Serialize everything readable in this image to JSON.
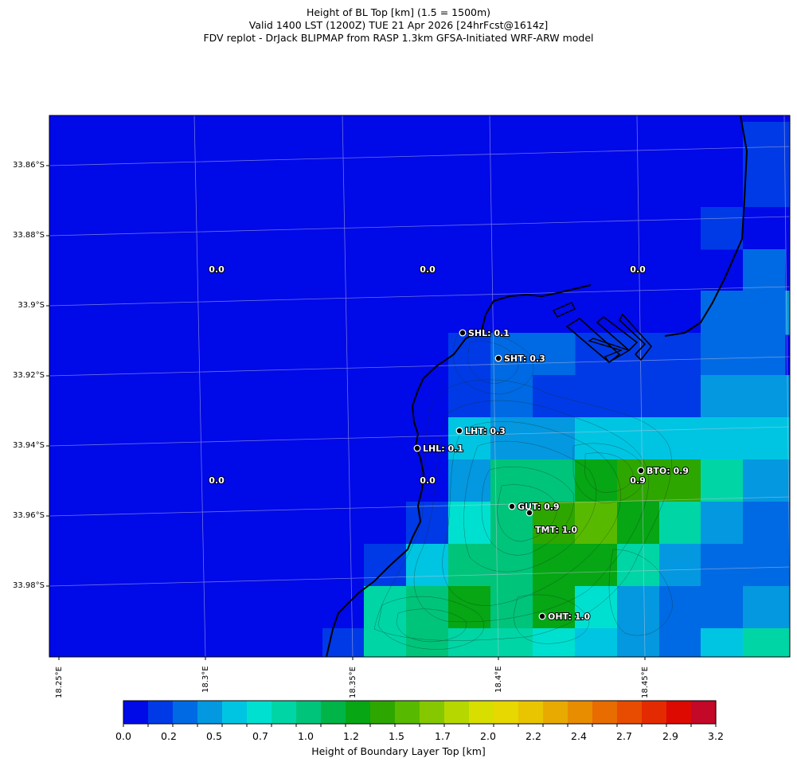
{
  "header": {
    "line1": "Height of BL Top [km] (1.5 = 1500m)",
    "line2": "Valid 1400 LST (1200Z) TUE 21 Apr 2026 [24hrFcst@1614z]",
    "line3": "FDV replot - DrJack BLIPMAP from RASP 1.3km GFSA-Initiated WRF-ARW model"
  },
  "axes": {
    "y_labels": [
      "33.86°S",
      "33.88°S",
      "33.9°S",
      "33.92°S",
      "33.94°S",
      "33.96°S",
      "33.98°S"
    ],
    "x_labels": [
      "18.25°E",
      "18.3°E",
      "18.35°E",
      "18.4°E",
      "18.45°E"
    ]
  },
  "colorbar": {
    "title": "Height of Boundary Layer Top [km]",
    "tick_labels": [
      "0.0",
      "0.2",
      "0.5",
      "0.7",
      "1.0",
      "1.2",
      "1.5",
      "1.7",
      "2.0",
      "2.2",
      "2.4",
      "2.7",
      "2.9",
      "3.2"
    ],
    "colors": [
      "#0009e8",
      "#003ae6",
      "#006ae4",
      "#0398e0",
      "#00c5e2",
      "#00e0d0",
      "#00d5a6",
      "#00c47a",
      "#00b448",
      "#06a614",
      "#2ea600",
      "#58ba00",
      "#85c800",
      "#b6d800",
      "#d8de00",
      "#e6d800",
      "#e8c500",
      "#e8aa00",
      "#e88c00",
      "#e86c00",
      "#e84c00",
      "#e42a00",
      "#dc0a00",
      "#c40828"
    ]
  },
  "map": {
    "grid_values": [
      {
        "label": "0.0",
        "value": 0.0
      },
      {
        "label": "0.0",
        "value": 0.0
      },
      {
        "label": "0.0",
        "value": 0.0
      },
      {
        "label": "0.0",
        "value": 0.0
      },
      {
        "label": "0.0",
        "value": 0.0
      },
      {
        "label": "0.9",
        "value": 0.9
      }
    ],
    "stations": [
      {
        "label": "SHL: 0.1",
        "code": "SHL",
        "value": 0.1
      },
      {
        "label": "SHT: 0.3",
        "code": "SHT",
        "value": 0.3
      },
      {
        "label": "LHT: 0.3",
        "code": "LHT",
        "value": 0.3
      },
      {
        "label": "LHL: 0.1",
        "code": "LHL",
        "value": 0.1
      },
      {
        "label": "BTO: 0.9",
        "code": "BTO",
        "value": 0.9
      },
      {
        "label": "GUT: 0.9",
        "code": "GUT",
        "value": 0.9
      },
      {
        "label": "TMT: 1.0",
        "code": "TMT",
        "value": 1.0
      },
      {
        "label": "OHT: 1.0",
        "code": "OHT",
        "value": 1.0
      }
    ]
  }
}
